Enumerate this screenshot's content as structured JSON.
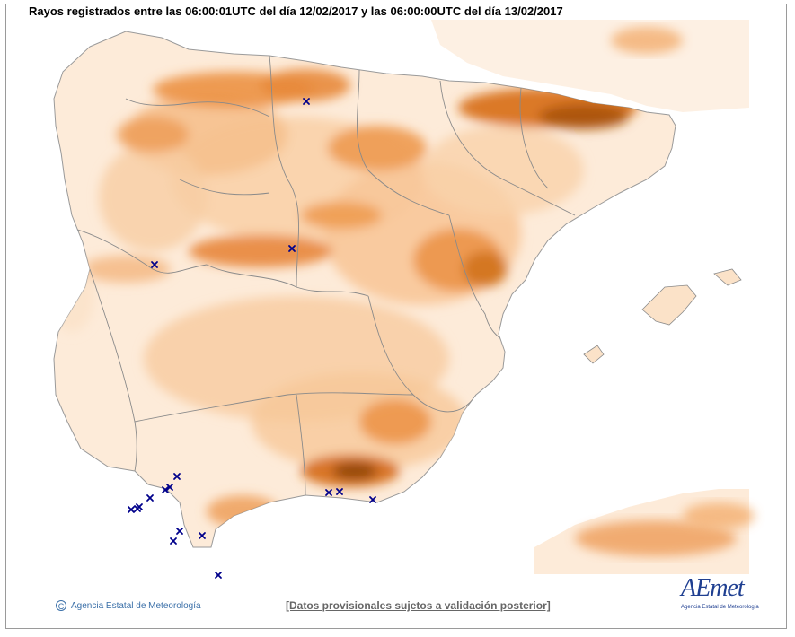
{
  "header": {
    "title": "Rayos registrados entre las 06:00:01UTC del día 12/02/2017 y las 06:00:00UTC del día 13/02/2017"
  },
  "footer": {
    "copyright_symbol": "C",
    "copyright_text": "Agencia Estatal de Meteorología",
    "disclaimer": "[Datos provisionales sujetos a validación posterior]",
    "logo_text": "AEmet",
    "logo_subtext": "Agencia Estatal de Meteorología"
  },
  "colors": {
    "sea": "#ffffff",
    "land_low": "#fdebd9",
    "land_mid": "#f8c79a",
    "land_high": "#f1a25c",
    "land_peak": "#c4600f",
    "border": "#8a8a8a",
    "strike_marker": "#00008b",
    "brand": "#1f3f91"
  },
  "icons": {
    "strike": "x-marker-icon",
    "copyright": "copyright-icon"
  }
}
